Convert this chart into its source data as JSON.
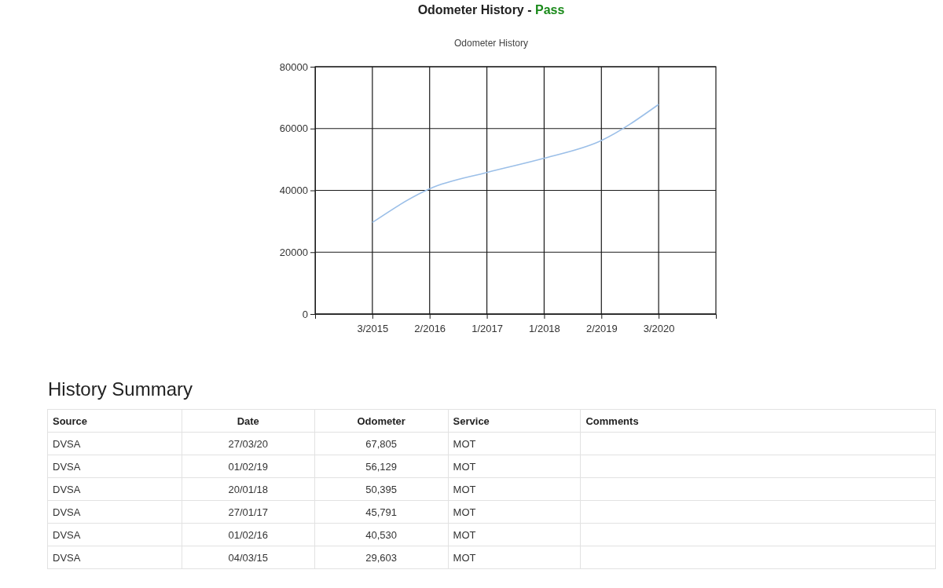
{
  "chart_data": {
    "type": "line",
    "title": "Odometer History - Pass",
    "subtitle": "Odometer History",
    "categories": [
      "3/2015",
      "2/2016",
      "1/2017",
      "1/2018",
      "2/2019",
      "3/2020"
    ],
    "values": [
      29603,
      40530,
      45791,
      50395,
      56129,
      67805
    ],
    "color": "#9bbfe8",
    "ylim": [
      0,
      80000
    ],
    "yticks": [
      0,
      20000,
      40000,
      60000,
      80000
    ],
    "grid": true,
    "annotations": [
      "History Summary",
      "Source",
      "Date",
      "Odometer",
      "Service",
      "Comments",
      "DVSA",
      "27/03/20",
      "67,805",
      "MOT",
      "DVSA",
      "01/02/19",
      "56,129",
      "MOT",
      "DVSA",
      "20/01/18",
      "50,395",
      "MOT",
      "DVSA",
      "27/01/17",
      "45,791",
      "MOT",
      "DVSA",
      "01/02/16",
      "40,530",
      "MOT",
      "DVSA",
      "04/03/15",
      "29,603",
      "MOT"
    ]
  }
}
